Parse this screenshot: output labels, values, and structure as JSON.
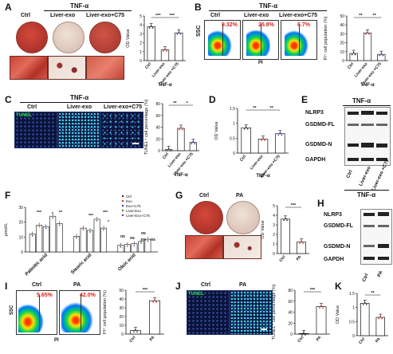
{
  "panels": {
    "A": {
      "label": "A",
      "header": "TNF-α",
      "groups": [
        "Ctrl",
        "Liver-exo",
        "Liver-exo+C75"
      ]
    },
    "B": {
      "label": "B",
      "header": "TNF-α",
      "groups": [
        "Ctrl",
        "Liver-exo",
        "Liver-exo+C75"
      ],
      "percents": [
        "9.32%",
        "25.8%",
        "6.7%"
      ],
      "y_axis": "SSC",
      "x_axis": "PI"
    },
    "C": {
      "label": "C",
      "header": "TNF-α",
      "groups": [
        "Ctrl",
        "Liver-exo",
        "Liver-exo+C75"
      ],
      "tag": "TUNEL"
    },
    "D": {
      "label": "D"
    },
    "E": {
      "label": "E",
      "header": "TNF-α",
      "rows": [
        "NLRP3",
        "GSDMD-FL",
        "GSDMD-N",
        "GAPDH"
      ],
      "lanes": [
        "Ctrl",
        "Liver-exo",
        "Liver-exo +C75"
      ],
      "footer": "TNF-α"
    },
    "F": {
      "label": "F"
    },
    "G": {
      "label": "G",
      "groups": [
        "Ctrl",
        "PA"
      ]
    },
    "H": {
      "label": "H",
      "rows": [
        "NLRP3",
        "GSDMD-FL",
        "GSDMD-N",
        "GAPDH"
      ],
      "lanes": [
        "Ctrl",
        "PA"
      ]
    },
    "I": {
      "label": "I",
      "groups": [
        "Ctrl",
        "PA"
      ],
      "percents": [
        "5.65%",
        "42.0%"
      ],
      "y_axis": "SSC",
      "x_axis": "PI"
    },
    "J": {
      "label": "J",
      "groups": [
        "Ctrl",
        "PA"
      ],
      "tag": "TUNEL"
    },
    "K": {
      "label": "K"
    }
  },
  "chart_data": [
    {
      "id": "A-bar",
      "type": "bar",
      "categories": [
        "Ctrl",
        "Liver-exo",
        "Liver-exo +C75"
      ],
      "values": [
        3.8,
        1.2,
        3.1
      ],
      "ylabel": "OD Value",
      "xlabel": "TNF-α",
      "ylim": [
        0,
        5
      ],
      "yticks": [
        0,
        1,
        2,
        3,
        4,
        5
      ],
      "sig": [
        "***",
        "***"
      ]
    },
    {
      "id": "B-bar",
      "type": "bar",
      "categories": [
        "Ctrl",
        "Liver-exo",
        "Liver-exo +C75"
      ],
      "values": [
        8,
        31,
        7
      ],
      "ylabel": "PI⁺ cell population (%)",
      "xlabel": "TNF-α",
      "ylim": [
        0,
        50
      ],
      "yticks": [
        0,
        10,
        20,
        30,
        40,
        50
      ],
      "sig": [
        "**",
        "**"
      ]
    },
    {
      "id": "C-bar",
      "type": "bar",
      "categories": [
        "Ctrl",
        "Liver-exo",
        "Liver-exo +C75"
      ],
      "values": [
        2,
        38,
        14
      ],
      "ylabel": "TUNEL⁺ cell percentage (%)",
      "xlabel": "TNF-α",
      "ylim": [
        0,
        80
      ],
      "yticks": [
        0,
        20,
        40,
        60,
        80
      ],
      "sig": [
        "**",
        "*"
      ]
    },
    {
      "id": "D-bar",
      "type": "bar",
      "categories": [
        "Ctrl",
        "Liver-exo",
        "Liver-exo +C75"
      ],
      "values": [
        0.85,
        0.47,
        0.65
      ],
      "ylabel": "OD Value",
      "xlabel": "TNF-α",
      "ylim": [
        0,
        1.5
      ],
      "yticks": [
        0.0,
        0.5,
        1.0,
        1.5
      ],
      "sig": [
        "**",
        "**"
      ]
    },
    {
      "id": "F-bar",
      "type": "bar",
      "categories": [
        "Palmitic acid",
        "Stearic acid",
        "Oleic acid"
      ],
      "series": [
        {
          "name": "Ctrl",
          "values": [
            12,
            10.5,
            4.5
          ]
        },
        {
          "name": "Exo",
          "values": [
            18,
            16,
            5
          ]
        },
        {
          "name": "Exo+C75",
          "values": [
            17,
            14.5,
            5.5
          ]
        },
        {
          "name": "Liver-Exo",
          "values": [
            24,
            22,
            7
          ]
        },
        {
          "name": "Liver-Exo+C75",
          "values": [
            19,
            16,
            8.5
          ]
        }
      ],
      "ylabel": "μmol/L",
      "ylim": [
        0,
        30
      ],
      "yticks": [
        0,
        10,
        20,
        30
      ],
      "sig": [
        "***",
        "**",
        "*",
        "***",
        "***",
        "*",
        "ns",
        "ns",
        "ns",
        "ns",
        "ns"
      ]
    },
    {
      "id": "G-bar",
      "type": "bar",
      "categories": [
        "Ctrl",
        "PA"
      ],
      "values": [
        3.6,
        1.2
      ],
      "ylabel": "OD Value",
      "ylim": [
        0,
        5
      ],
      "yticks": [
        0,
        1,
        2,
        3,
        4,
        5
      ],
      "sig": [
        "***"
      ]
    },
    {
      "id": "I-bar",
      "type": "bar",
      "categories": [
        "Ctrl",
        "PA"
      ],
      "values": [
        4,
        38
      ],
      "ylabel": "PI⁺ cell population (%)",
      "ylim": [
        0,
        50
      ],
      "yticks": [
        0,
        10,
        20,
        30,
        40,
        50
      ],
      "sig": [
        "***"
      ]
    },
    {
      "id": "J-bar",
      "type": "bar",
      "categories": [
        "Ctrl",
        "PA"
      ],
      "values": [
        1,
        50
      ],
      "ylabel": "TUNEL⁺ cell percentage (%)",
      "ylim": [
        0,
        80
      ],
      "yticks": [
        0,
        20,
        40,
        60,
        80
      ],
      "sig": [
        "***"
      ]
    },
    {
      "id": "K-bar",
      "type": "bar",
      "categories": [
        "Ctrl",
        "PA"
      ],
      "values": [
        1.15,
        0.65
      ],
      "ylabel": "OD Value",
      "ylim": [
        0,
        1.5
      ],
      "yticks": [
        0.0,
        0.5,
        1.0,
        1.5
      ],
      "sig": [
        "**"
      ]
    }
  ],
  "colors": {
    "ctrl_bar": "#ffffff",
    "treated_point": "#e03030",
    "c75_point": "#3c3cc8",
    "red_text": "#e02020",
    "dish_red": "#b8372d",
    "dish_pale": "#e6d6cc",
    "fluor_bg": "#0a1437"
  },
  "icons": {
    "flow_density": "flow-dot-plot",
    "fluorescence": "tunel-micrograph"
  }
}
